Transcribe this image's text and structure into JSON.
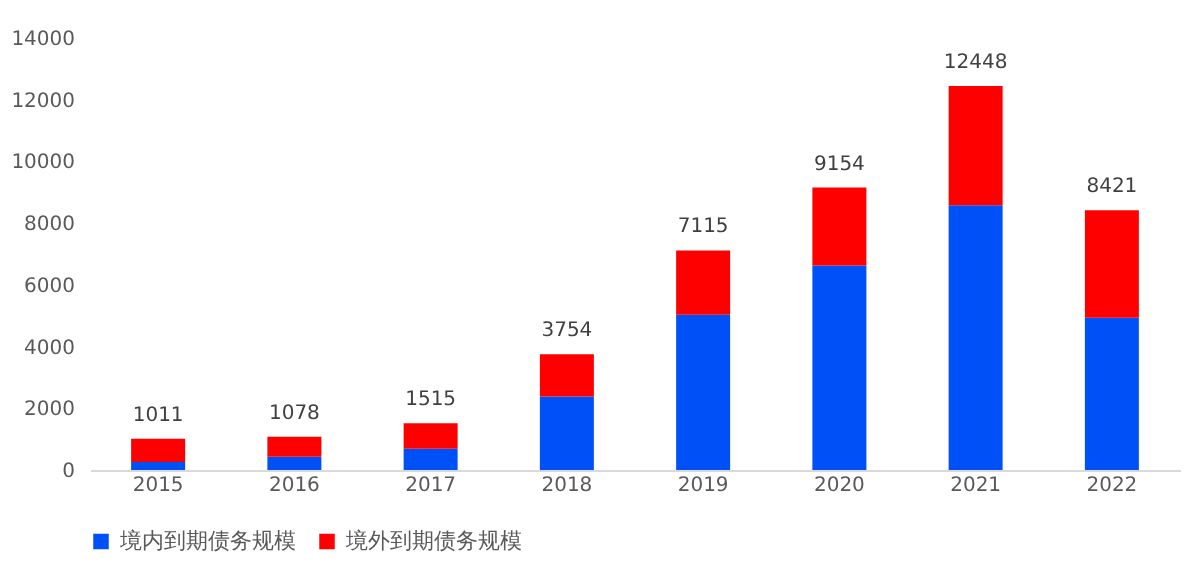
{
  "chart_data": {
    "type": "bar",
    "stacked": true,
    "categories": [
      "2015",
      "2016",
      "2017",
      "2018",
      "2019",
      "2020",
      "2021",
      "2022"
    ],
    "series": [
      {
        "name": "境内到期债务规模",
        "color": "#0050f8",
        "values": [
          260,
          430,
          690,
          2380,
          5030,
          6630,
          8580,
          4930
        ]
      },
      {
        "name": "境外到期债务规模",
        "color": "#ff0000",
        "values": [
          751,
          648,
          825,
          1374,
          2085,
          2524,
          3868,
          3491
        ]
      }
    ],
    "totals": [
      "1011",
      "1078",
      "1515",
      "3754",
      "7115",
      "9154",
      "12448",
      "8421"
    ],
    "ylim": [
      0,
      14000
    ],
    "yticks": [
      0,
      2000,
      4000,
      6000,
      8000,
      10000,
      12000,
      14000
    ],
    "grid": false,
    "legend": "bottom"
  }
}
